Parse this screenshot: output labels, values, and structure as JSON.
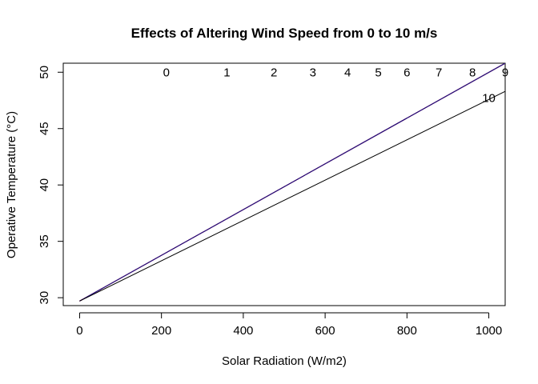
{
  "chart_data": {
    "type": "line",
    "title": "Effects of Altering Wind Speed from 0 to 10 m/s",
    "xlabel": "Solar Radiation (W/m2)",
    "ylabel": "Operative Temperature (°C)",
    "xlim": [
      -40,
      1040
    ],
    "ylim": [
      29.3,
      50.8
    ],
    "xticks": [
      0,
      200,
      400,
      600,
      800,
      1000
    ],
    "yticks": [
      30,
      35,
      40,
      45,
      50
    ],
    "grid": false,
    "legend": "none",
    "intercept": 29.7,
    "series": [
      {
        "name": "0",
        "color": "#F5D31A",
        "x": [
          0,
          1040
        ],
        "y": [
          29.7,
          50.8
        ],
        "label_at": [
          212,
          50.0
        ]
      },
      {
        "name": "1",
        "color": "#F2A12E",
        "x": [
          0,
          1040
        ],
        "y": [
          29.7,
          50.8
        ],
        "label_at": [
          360,
          50.0
        ]
      },
      {
        "name": "2",
        "color": "#EA7A3C",
        "x": [
          0,
          1040
        ],
        "y": [
          29.7,
          50.8
        ],
        "label_at": [
          475,
          50.0
        ]
      },
      {
        "name": "3",
        "color": "#E3553E",
        "x": [
          0,
          1040
        ],
        "y": [
          29.7,
          50.8
        ],
        "label_at": [
          570,
          50.0
        ]
      },
      {
        "name": "4",
        "color": "#D93346",
        "x": [
          0,
          1040
        ],
        "y": [
          29.7,
          50.8
        ],
        "label_at": [
          655,
          50.0
        ]
      },
      {
        "name": "5",
        "color": "#C71D6A",
        "x": [
          0,
          1040
        ],
        "y": [
          29.7,
          50.8
        ],
        "label_at": [
          730,
          50.0
        ]
      },
      {
        "name": "6",
        "color": "#A91A8E",
        "x": [
          0,
          1040
        ],
        "y": [
          29.7,
          50.8
        ],
        "label_at": [
          800,
          50.0
        ]
      },
      {
        "name": "7",
        "color": "#8518A8",
        "x": [
          0,
          1040
        ],
        "y": [
          29.7,
          50.8
        ],
        "label_at": [
          878,
          50.0
        ]
      },
      {
        "name": "8",
        "color": "#5B1596",
        "x": [
          0,
          1040
        ],
        "y": [
          29.7,
          50.8
        ],
        "label_at": [
          960,
          50.0
        ]
      },
      {
        "name": "9",
        "color": "#1E1A7D",
        "x": [
          0,
          1040
        ],
        "y": [
          29.7,
          50.8
        ],
        "label_at": [
          1040,
          50.0
        ]
      },
      {
        "name": "10",
        "color": "#000000",
        "x": [
          0,
          1040
        ],
        "y": [
          29.7,
          48.3
        ],
        "label_at": [
          1000,
          47.7
        ]
      }
    ]
  }
}
